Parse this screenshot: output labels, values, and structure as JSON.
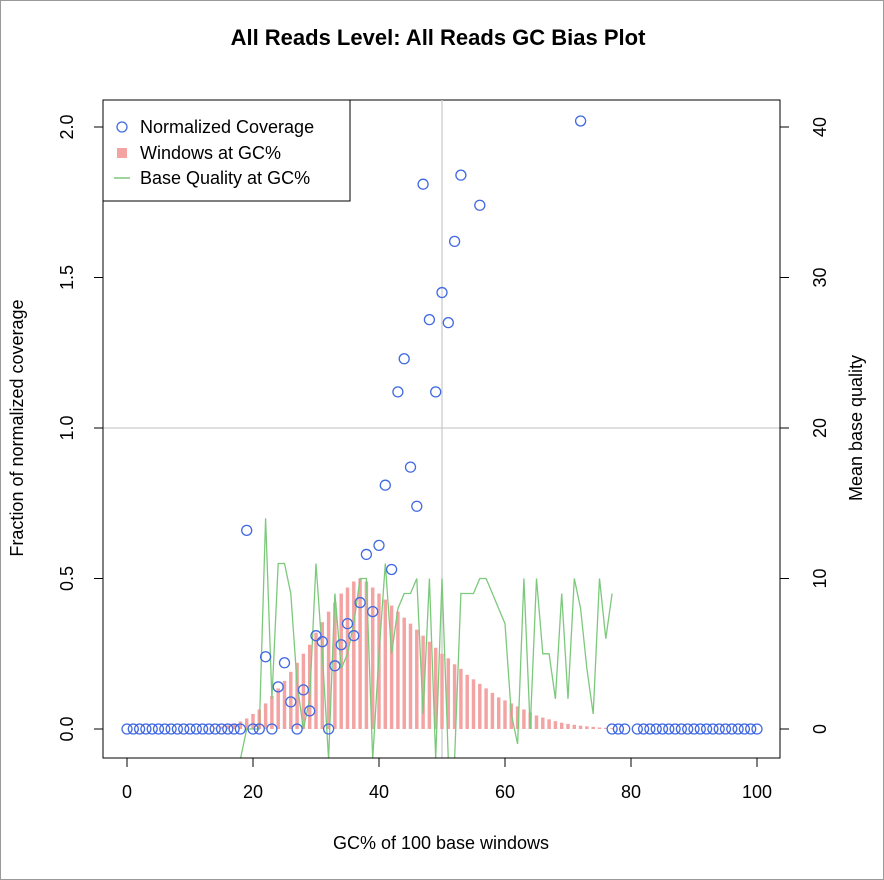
{
  "chart_data": {
    "title": "All Reads Level: All Reads  GC Bias Plot",
    "xlabel": "GC% of 100 base windows",
    "ylabel": "Fraction of normalized coverage",
    "y2label": "Mean base quality",
    "xlim": [
      0,
      100
    ],
    "ylim": [
      0,
      2.0
    ],
    "y2lim": [
      0,
      40
    ],
    "x_ticks": [
      0,
      20,
      40,
      60,
      80,
      100
    ],
    "y_ticks": [
      0.0,
      0.5,
      1.0,
      1.5,
      2.0
    ],
    "y_tick_labels": [
      "0.0",
      "0.5",
      "1.0",
      "1.5",
      "2.0"
    ],
    "y2_ticks": [
      0,
      10,
      20,
      30,
      40
    ],
    "reference_lines": {
      "x": 50,
      "y": 1.0
    },
    "legend": {
      "position": "top-left",
      "entries": [
        "Normalized Coverage",
        "Windows at GC%",
        "Base Quality at GC%"
      ]
    },
    "colors": {
      "coverage": "#4169e1",
      "windows": "#f4a3a3",
      "quality": "#7cc97c",
      "refline": "#cccccc"
    },
    "series": [
      {
        "name": "Normalized Coverage",
        "type": "scatter",
        "x": [
          0,
          1,
          2,
          3,
          4,
          5,
          6,
          7,
          8,
          9,
          10,
          11,
          12,
          13,
          14,
          15,
          16,
          17,
          18,
          19,
          20,
          21,
          22,
          23,
          24,
          25,
          26,
          27,
          28,
          29,
          30,
          31,
          32,
          33,
          34,
          35,
          36,
          37,
          38,
          39,
          40,
          41,
          42,
          43,
          44,
          45,
          46,
          47,
          48,
          49,
          50,
          51,
          52,
          53,
          56,
          72,
          77,
          78,
          79,
          81,
          82,
          83,
          84,
          85,
          86,
          87,
          88,
          89,
          90,
          91,
          92,
          93,
          94,
          95,
          96,
          97,
          98,
          99,
          100
        ],
        "y": [
          0,
          0,
          0,
          0,
          0,
          0,
          0,
          0,
          0,
          0,
          0,
          0,
          0,
          0,
          0,
          0,
          0,
          0,
          0,
          0.66,
          0,
          0,
          0.24,
          0,
          0.14,
          0.22,
          0.09,
          0,
          0.13,
          0.06,
          0.31,
          0.29,
          0,
          0.21,
          0.28,
          0.35,
          0.31,
          0.42,
          0.58,
          0.39,
          0.61,
          0.81,
          0.53,
          1.12,
          1.23,
          0.87,
          0.74,
          1.81,
          1.36,
          1.12,
          1.45,
          1.35,
          1.62,
          1.84,
          1.74,
          2.02,
          0,
          0,
          0,
          0,
          0,
          0,
          0,
          0,
          0,
          0,
          0,
          0,
          0,
          0,
          0,
          0,
          0,
          0,
          0,
          0,
          0,
          0,
          0
        ]
      },
      {
        "name": "Windows at GC%",
        "type": "bar",
        "x": [
          14,
          15,
          16,
          17,
          18,
          19,
          20,
          21,
          22,
          23,
          24,
          25,
          26,
          27,
          28,
          29,
          30,
          31,
          32,
          33,
          34,
          35,
          36,
          37,
          38,
          39,
          40,
          41,
          42,
          43,
          44,
          45,
          46,
          47,
          48,
          49,
          50,
          51,
          52,
          53,
          54,
          55,
          56,
          57,
          58,
          59,
          60,
          61,
          62,
          63,
          64,
          65,
          66,
          67,
          68,
          69,
          70,
          71,
          72,
          73,
          74,
          75,
          76,
          77
        ],
        "y": [
          0.005,
          0.008,
          0.012,
          0.017,
          0.025,
          0.035,
          0.05,
          0.065,
          0.085,
          0.11,
          0.135,
          0.16,
          0.19,
          0.22,
          0.25,
          0.28,
          0.32,
          0.355,
          0.39,
          0.42,
          0.45,
          0.47,
          0.49,
          0.5,
          0.49,
          0.47,
          0.45,
          0.43,
          0.41,
          0.39,
          0.37,
          0.35,
          0.33,
          0.31,
          0.29,
          0.27,
          0.25,
          0.235,
          0.215,
          0.2,
          0.18,
          0.165,
          0.15,
          0.135,
          0.12,
          0.105,
          0.095,
          0.085,
          0.075,
          0.065,
          0.055,
          0.045,
          0.038,
          0.032,
          0.026,
          0.021,
          0.017,
          0.014,
          0.011,
          0.009,
          0.007,
          0.005,
          0.004,
          0.003
        ]
      },
      {
        "name": "Base Quality at GC%",
        "type": "line",
        "x": [
          18,
          19,
          20,
          21,
          22,
          23,
          24,
          25,
          26,
          27,
          28,
          29,
          30,
          31,
          32,
          33,
          34,
          35,
          36,
          37,
          38,
          39,
          40,
          41,
          42,
          43,
          44,
          45,
          46,
          47,
          48,
          49,
          50,
          51,
          52,
          53,
          54,
          55,
          56,
          57,
          58,
          59,
          60,
          61,
          62,
          63,
          64,
          65,
          66,
          67,
          68,
          69,
          70,
          71,
          72,
          73,
          74,
          75,
          76,
          77
        ],
        "y": [
          -2,
          0,
          0,
          0,
          14,
          2,
          11,
          11,
          9,
          3,
          0,
          2,
          11,
          5,
          -2,
          9,
          4,
          5,
          7,
          10,
          10,
          -2,
          5,
          11,
          5,
          8,
          9,
          9,
          10,
          1,
          10,
          -2,
          10,
          -2,
          -2,
          9,
          9,
          9,
          10,
          10,
          9,
          8,
          7,
          1,
          -1,
          10,
          0,
          10,
          5,
          5,
          2,
          9,
          2,
          10,
          8,
          4,
          1,
          10,
          6,
          9
        ]
      }
    ]
  }
}
